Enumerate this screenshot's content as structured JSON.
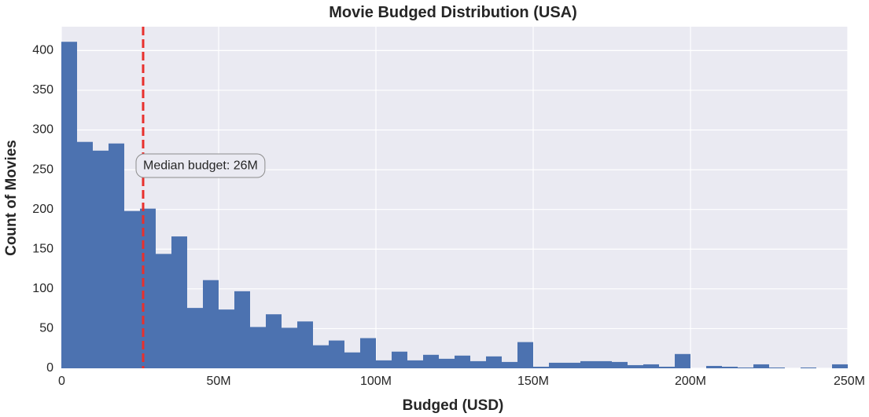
{
  "chart_data": {
    "type": "bar",
    "title": "Movie Budged Distribution (USA)",
    "xlabel": "Budged (USD)",
    "ylabel": "Count of Movies",
    "bin_width": 5000000,
    "bin_start": 0,
    "values": [
      411,
      285,
      274,
      283,
      198,
      201,
      144,
      166,
      76,
      111,
      74,
      97,
      52,
      68,
      51,
      59,
      29,
      35,
      20,
      38,
      10,
      21,
      10,
      17,
      12,
      16,
      9,
      15,
      8,
      33,
      2,
      7,
      7,
      9,
      9,
      8,
      4,
      5,
      2,
      18,
      0,
      3,
      2,
      1,
      5,
      1,
      0,
      1,
      0,
      5
    ],
    "xlim": [
      0,
      250000000
    ],
    "ylim": [
      0,
      430
    ],
    "x_ticks": [
      {
        "value": 0,
        "label": "0"
      },
      {
        "value": 50000000,
        "label": "50M"
      },
      {
        "value": 100000000,
        "label": "100M"
      },
      {
        "value": 150000000,
        "label": "150M"
      },
      {
        "value": 200000000,
        "label": "200M"
      },
      {
        "value": 250000000,
        "label": "250M"
      }
    ],
    "y_ticks": [
      0,
      50,
      100,
      150,
      200,
      250,
      300,
      350,
      400
    ],
    "grid": true,
    "median": {
      "value": 26000000,
      "label": "Median budget: 26M",
      "label_y": 255
    },
    "colors": {
      "bar": "#4c72b0",
      "median_line": "#e8302d",
      "background": "#eaeaf2",
      "grid": "#ffffff"
    }
  }
}
